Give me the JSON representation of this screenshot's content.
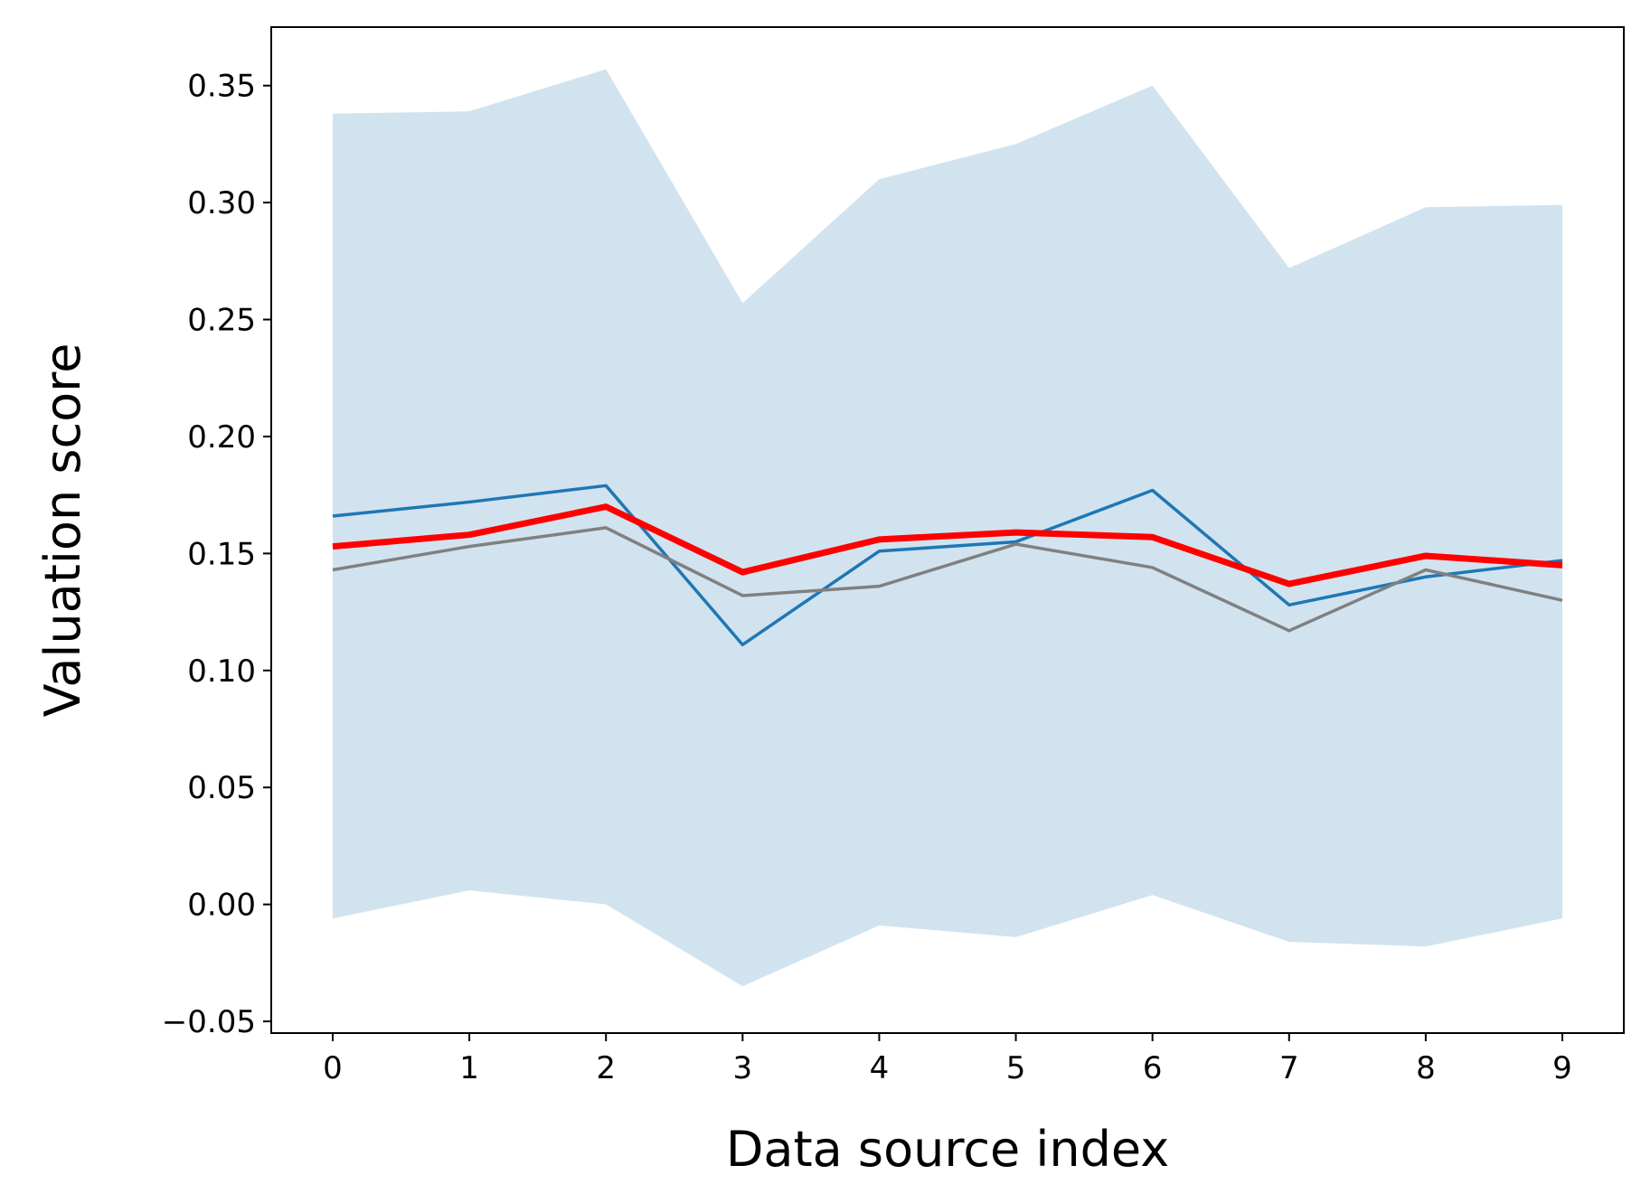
{
  "chart_data": {
    "type": "line",
    "title": "",
    "xlabel": "Data source index",
    "ylabel": "Valuation score",
    "x": [
      0,
      1,
      2,
      3,
      4,
      5,
      6,
      7,
      8,
      9
    ],
    "xlim": [
      -0.45,
      9.45
    ],
    "ylim": [
      -0.055,
      0.375
    ],
    "xticks": [
      "0",
      "1",
      "2",
      "3",
      "4",
      "5",
      "6",
      "7",
      "8",
      "9"
    ],
    "yticks": [
      "−0.05",
      "0.00",
      "0.05",
      "0.10",
      "0.15",
      "0.20",
      "0.25",
      "0.30",
      "0.35"
    ],
    "ytick_values": [
      -0.05,
      0.0,
      0.05,
      0.1,
      0.15,
      0.2,
      0.25,
      0.3,
      0.35
    ],
    "grid": false,
    "band": {
      "color": "#d1e3ef",
      "lower": [
        -0.006,
        0.006,
        0.0,
        -0.035,
        -0.009,
        -0.014,
        0.004,
        -0.016,
        -0.018,
        -0.006
      ],
      "upper": [
        0.338,
        0.339,
        0.357,
        0.257,
        0.31,
        0.325,
        0.35,
        0.272,
        0.298,
        0.299
      ]
    },
    "series": [
      {
        "color": "#1f77b4",
        "width": 3.5,
        "values": [
          0.166,
          0.172,
          0.179,
          0.111,
          0.151,
          0.155,
          0.177,
          0.128,
          0.14,
          0.147
        ]
      },
      {
        "color": "#808080",
        "width": 3.5,
        "values": [
          0.143,
          0.153,
          0.161,
          0.132,
          0.136,
          0.154,
          0.144,
          0.117,
          0.143,
          0.13
        ]
      },
      {
        "color": "#ff0000",
        "width": 7,
        "values": [
          0.153,
          0.158,
          0.17,
          0.142,
          0.156,
          0.159,
          0.157,
          0.137,
          0.149,
          0.145
        ]
      }
    ]
  }
}
